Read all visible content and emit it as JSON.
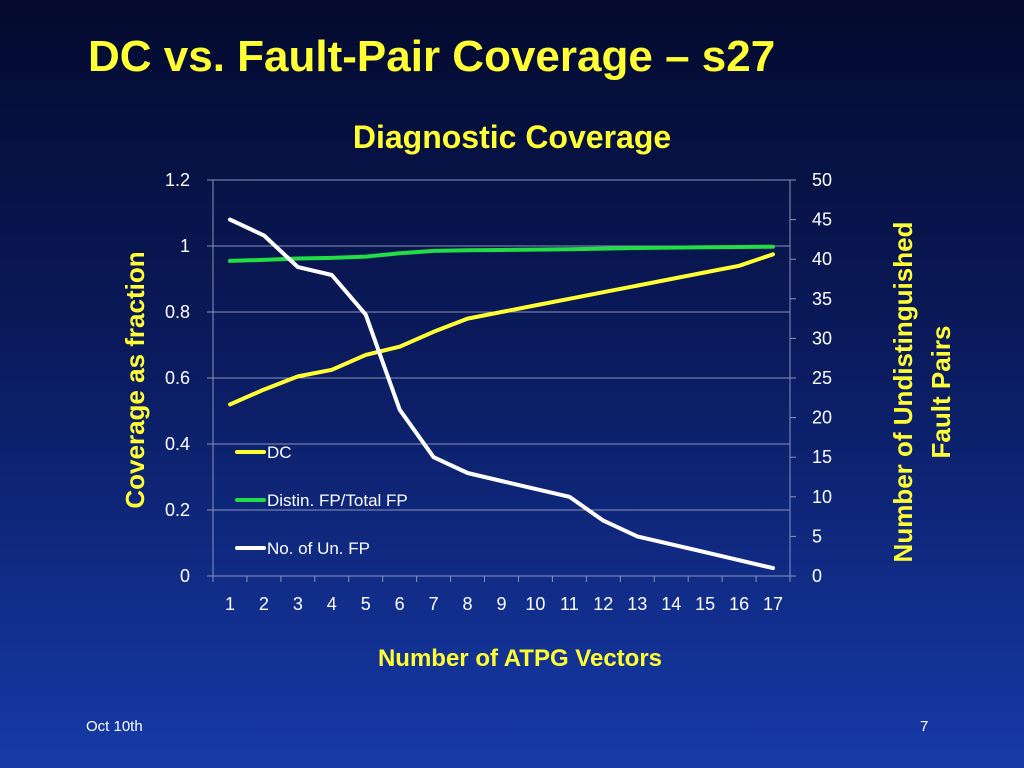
{
  "slide": {
    "title": "DC vs. Fault-Pair Coverage – s27",
    "footer_left": "Oct  10th",
    "footer_right": "7"
  },
  "colors": {
    "title": "#ffff33",
    "dc": "#ffff33",
    "distin": "#22dd44",
    "unfp": "#ffffff",
    "grid": "#8a93b8"
  },
  "chart_data": {
    "type": "line",
    "title": "Diagnostic Coverage",
    "xlabel": "Number of ATPG Vectors",
    "ylabel": "Coverage as fraction",
    "y2label_line1": "Number of Undistinguished",
    "y2label_line2": "Fault Pairs",
    "categories": [
      "1",
      "2",
      "3",
      "4",
      "5",
      "6",
      "7",
      "8",
      "9",
      "10",
      "11",
      "12",
      "13",
      "14",
      "15",
      "16",
      "17"
    ],
    "ylim": [
      0,
      1.2
    ],
    "yticks": [
      "0",
      "0.2",
      "0.4",
      "0.6",
      "0.8",
      "1",
      "1.2"
    ],
    "y2lim": [
      0,
      50
    ],
    "y2ticks": [
      "0",
      "5",
      "10",
      "15",
      "20",
      "25",
      "30",
      "35",
      "40",
      "45",
      "50"
    ],
    "grid": true,
    "legend_position": "lower-left",
    "series": [
      {
        "name": "DC",
        "axis": "left",
        "color": "#ffff33",
        "values": [
          0.52,
          0.565,
          0.605,
          0.625,
          0.67,
          0.695,
          0.74,
          0.78,
          0.8,
          0.82,
          0.84,
          0.86,
          0.88,
          0.9,
          0.92,
          0.94,
          0.975
        ]
      },
      {
        "name": "Distin. FP/Total FP",
        "axis": "left",
        "color": "#22dd44",
        "values": [
          0.955,
          0.958,
          0.962,
          0.964,
          0.968,
          0.978,
          0.985,
          0.987,
          0.988,
          0.989,
          0.99,
          0.992,
          0.994,
          0.995,
          0.996,
          0.997,
          0.998
        ]
      },
      {
        "name": "No. of Un. FP",
        "axis": "right",
        "color": "#ffffff",
        "values": [
          45,
          43,
          39,
          38,
          33,
          21,
          15,
          13,
          12,
          11,
          10,
          7,
          5,
          4,
          3,
          2,
          1
        ]
      }
    ]
  }
}
